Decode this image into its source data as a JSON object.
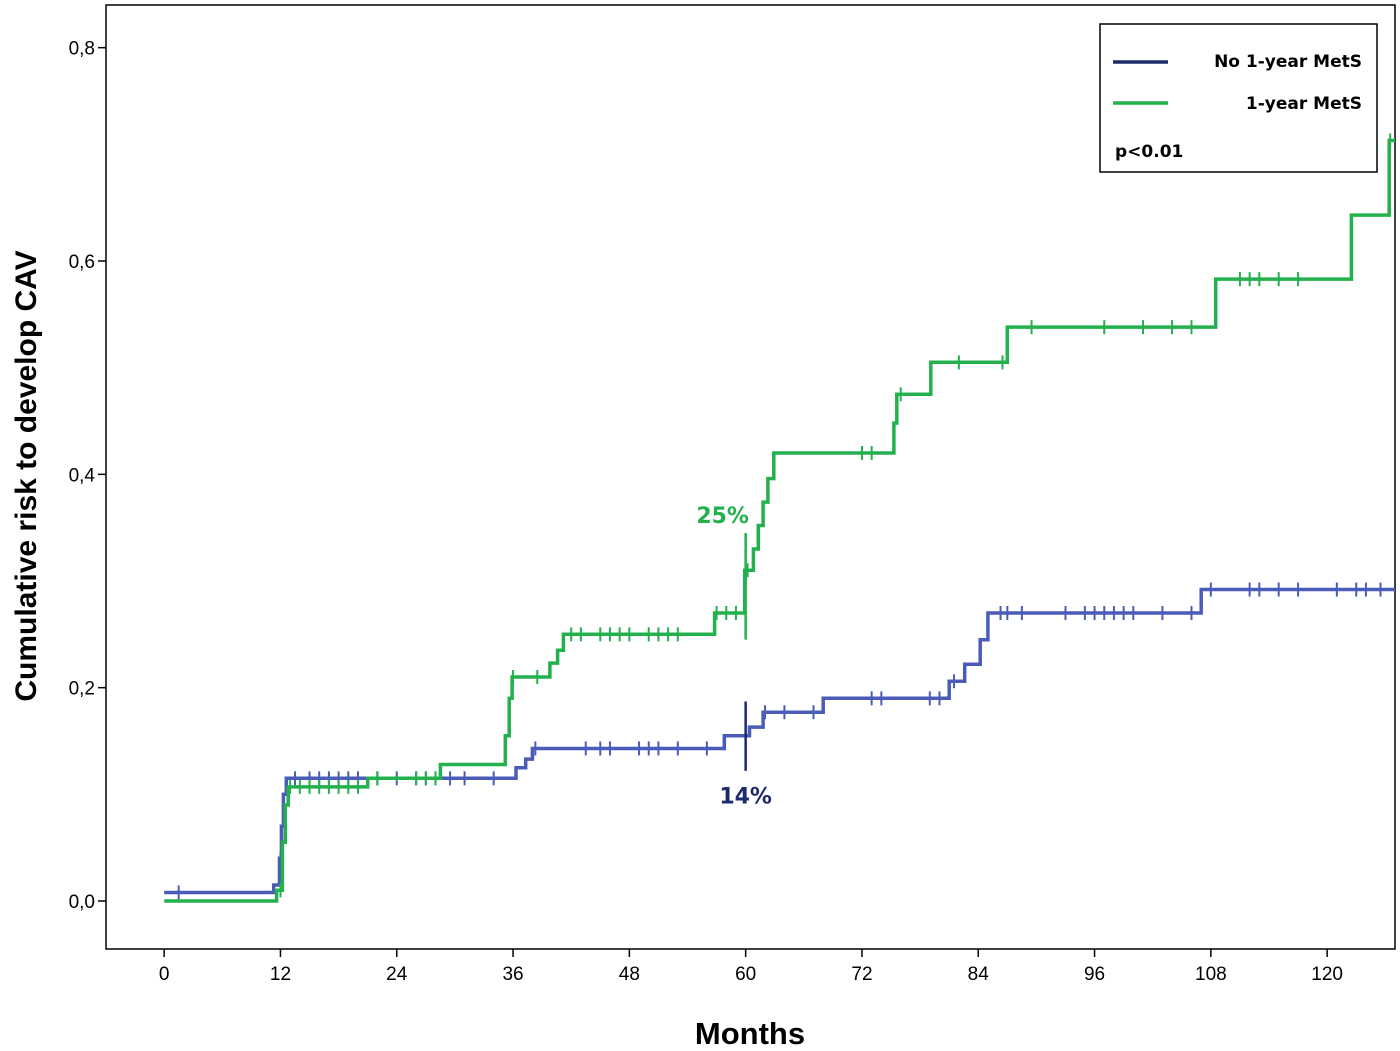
{
  "chart_data": {
    "type": "line",
    "subtype": "kaplan-meier-step",
    "title": "",
    "xlabel": "Months",
    "ylabel": "Cumulative risk to develop CAV",
    "xlim": [
      -6,
      127
    ],
    "ylim": [
      -0.045,
      0.84
    ],
    "xticks": [
      0,
      12,
      24,
      36,
      48,
      60,
      72,
      84,
      96,
      108,
      120
    ],
    "yticks": [
      0.0,
      0.2,
      0.4,
      0.6,
      0.8
    ],
    "ytick_labels": [
      "0,0",
      "0,2",
      "0,4",
      "0,6",
      "0,8"
    ],
    "legend_position": "top-right",
    "legend_box": true,
    "grid": false,
    "series": [
      {
        "name": "No 1-year MetS",
        "color": "#4a5cb8",
        "legend_color": "#1c2a6e",
        "steps": [
          [
            0,
            0.008
          ],
          [
            11.3,
            0.008
          ],
          [
            11.3,
            0.015
          ],
          [
            11.9,
            0.015
          ],
          [
            11.9,
            0.04
          ],
          [
            12.1,
            0.04
          ],
          [
            12.1,
            0.07
          ],
          [
            12.3,
            0.07
          ],
          [
            12.3,
            0.1
          ],
          [
            12.6,
            0.1
          ],
          [
            12.6,
            0.115
          ],
          [
            36.3,
            0.115
          ],
          [
            36.3,
            0.125
          ],
          [
            37.3,
            0.125
          ],
          [
            37.3,
            0.133
          ],
          [
            38.0,
            0.133
          ],
          [
            38.0,
            0.143
          ],
          [
            57.8,
            0.143
          ],
          [
            57.8,
            0.155
          ],
          [
            60.4,
            0.155
          ],
          [
            60.4,
            0.163
          ],
          [
            61.8,
            0.163
          ],
          [
            61.8,
            0.177
          ],
          [
            68.0,
            0.177
          ],
          [
            68.0,
            0.19
          ],
          [
            81.0,
            0.19
          ],
          [
            81.0,
            0.206
          ],
          [
            82.6,
            0.206
          ],
          [
            82.6,
            0.222
          ],
          [
            84.2,
            0.222
          ],
          [
            84.2,
            0.245
          ],
          [
            85.0,
            0.245
          ],
          [
            85.0,
            0.27
          ],
          [
            107.0,
            0.27
          ],
          [
            107.0,
            0.292
          ],
          [
            127,
            0.292
          ]
        ],
        "censored_x": [
          1.5,
          12.0,
          13.5,
          15,
          16,
          17,
          18,
          19,
          20,
          22,
          24,
          26,
          27,
          28,
          29.5,
          31,
          34,
          38.3,
          43.5,
          45,
          46,
          49,
          50,
          51,
          53,
          56,
          62,
          64,
          67,
          73,
          74,
          79,
          80,
          81.5,
          86.3,
          87,
          88.5,
          93,
          95,
          96,
          97,
          98,
          99,
          100,
          103,
          106,
          108,
          112,
          113,
          115,
          117,
          121,
          123,
          124,
          125.5
        ]
      },
      {
        "name": "1-year MetS",
        "color": "#22b14c",
        "legend_color": "#22b14c",
        "steps": [
          [
            0,
            0.0
          ],
          [
            11.6,
            0.0
          ],
          [
            11.6,
            0.01
          ],
          [
            12.2,
            0.01
          ],
          [
            12.2,
            0.055
          ],
          [
            12.5,
            0.055
          ],
          [
            12.5,
            0.09
          ],
          [
            12.8,
            0.09
          ],
          [
            12.8,
            0.107
          ],
          [
            21.0,
            0.107
          ],
          [
            21.0,
            0.115
          ],
          [
            28.5,
            0.115
          ],
          [
            28.5,
            0.128
          ],
          [
            35.2,
            0.128
          ],
          [
            35.2,
            0.155
          ],
          [
            35.6,
            0.155
          ],
          [
            35.6,
            0.19
          ],
          [
            35.9,
            0.19
          ],
          [
            35.9,
            0.21
          ],
          [
            39.8,
            0.21
          ],
          [
            39.8,
            0.223
          ],
          [
            40.6,
            0.223
          ],
          [
            40.6,
            0.235
          ],
          [
            41.2,
            0.235
          ],
          [
            41.2,
            0.25
          ],
          [
            56.8,
            0.25
          ],
          [
            56.8,
            0.27
          ],
          [
            59.9,
            0.27
          ],
          [
            59.9,
            0.31
          ],
          [
            60.8,
            0.31
          ],
          [
            60.8,
            0.33
          ],
          [
            61.3,
            0.33
          ],
          [
            61.3,
            0.352
          ],
          [
            61.8,
            0.352
          ],
          [
            61.8,
            0.374
          ],
          [
            62.3,
            0.374
          ],
          [
            62.3,
            0.396
          ],
          [
            62.9,
            0.396
          ],
          [
            62.9,
            0.42
          ],
          [
            75.3,
            0.42
          ],
          [
            75.3,
            0.448
          ],
          [
            75.6,
            0.448
          ],
          [
            75.6,
            0.475
          ],
          [
            79.1,
            0.475
          ],
          [
            79.1,
            0.505
          ],
          [
            87.0,
            0.505
          ],
          [
            87.0,
            0.538
          ],
          [
            108.5,
            0.538
          ],
          [
            108.5,
            0.583
          ],
          [
            122.5,
            0.583
          ],
          [
            122.5,
            0.643
          ],
          [
            126.4,
            0.643
          ],
          [
            126.4,
            0.713
          ],
          [
            127,
            0.713
          ]
        ],
        "censored_x": [
          12.0,
          13,
          14,
          15,
          16,
          17,
          18,
          19,
          20,
          22,
          26,
          27,
          28,
          36,
          38.5,
          42,
          43,
          45,
          46,
          47,
          48,
          50,
          51,
          52,
          53,
          57,
          58,
          59,
          60.2,
          72,
          73,
          76,
          82,
          86.5,
          89.5,
          97,
          101,
          104,
          106,
          111,
          112,
          113,
          115,
          117,
          126.5
        ]
      }
    ],
    "annotations": [
      {
        "text": "25%",
        "x": 60,
        "y": 0.25,
        "series": "1-year MetS"
      },
      {
        "text": "14%",
        "x": 60,
        "y": 0.143,
        "series": "No 1-year MetS"
      },
      {
        "text": "p<0.01"
      }
    ]
  }
}
